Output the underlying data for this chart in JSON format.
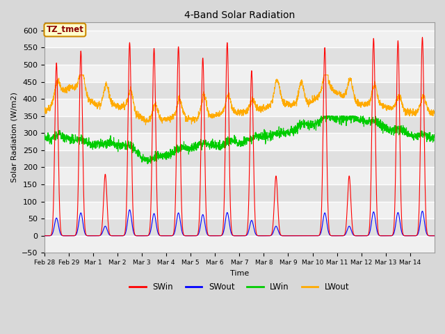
{
  "title": "4-Band Solar Radiation",
  "xlabel": "Time",
  "ylabel": "Solar Radiation (W/m2)",
  "ylim": [
    -50,
    625
  ],
  "annotation": "TZ_tmet",
  "legend_labels": [
    "SWin",
    "SWout",
    "LWin",
    "LWout"
  ],
  "legend_colors": [
    "#ff0000",
    "#0000ff",
    "#00cc00",
    "#ffaa00"
  ],
  "tick_label_dates": [
    "Feb 28",
    "Feb 29",
    "Mar 1",
    "Mar 2",
    "Mar 3",
    "Mar 4",
    "Mar 5",
    "Mar 6",
    "Mar 7",
    "Mar 8",
    "Mar 9",
    "Mar 10",
    "Mar 11",
    "Mar 12",
    "Mar 13",
    "Mar 14"
  ],
  "num_days": 16,
  "peaks_SWin": [
    505,
    540,
    180,
    565,
    548,
    553,
    520,
    565,
    483,
    175,
    0,
    550,
    175,
    577,
    570,
    580
  ],
  "peaks_SWout": [
    52,
    67,
    28,
    76,
    65,
    67,
    62,
    68,
    45,
    28,
    0,
    67,
    28,
    70,
    68,
    72
  ],
  "LWin_base_vals": [
    283,
    283,
    265,
    265,
    215,
    240,
    263,
    263,
    283,
    295,
    315,
    340,
    340,
    315,
    295,
    283
  ],
  "LWout_base_vals": [
    355,
    445,
    380,
    380,
    330,
    345,
    340,
    360,
    360,
    390,
    380,
    430,
    385,
    380,
    360,
    360
  ]
}
